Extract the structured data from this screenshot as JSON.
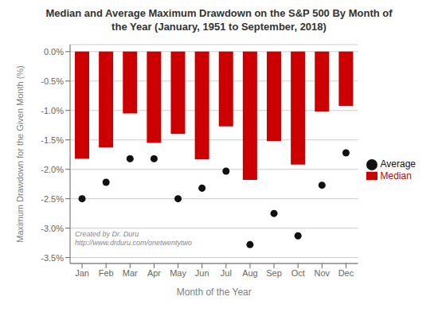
{
  "chart_data": {
    "type": "bar",
    "title": "Median and Average Maximum Drawdown on the S&P 500 By Month of\nthe Year (January, 1951 to September, 2018)",
    "x_label": "Month of the Year",
    "y_label": "Maximum Drawdown for the Given Month (%)",
    "categories": [
      "Jan",
      "Feb",
      "Mar",
      "Apr",
      "May",
      "Jun",
      "Jul",
      "Aug",
      "Sep",
      "Oct",
      "Nov",
      "Dec"
    ],
    "series": [
      {
        "name": "Median",
        "type": "bar",
        "color": "#cc0000",
        "values": [
          -1.82,
          -1.63,
          -1.05,
          -1.55,
          -1.4,
          -1.83,
          -1.27,
          -2.18,
          -1.52,
          -1.92,
          -1.02,
          -0.92
        ]
      },
      {
        "name": "Average",
        "type": "scatter",
        "color": "#111111",
        "marker": "circle",
        "values": [
          -2.5,
          -2.22,
          -1.82,
          -1.82,
          -2.5,
          -2.32,
          -2.03,
          -3.28,
          -2.75,
          -3.13,
          -2.27,
          -1.72
        ]
      }
    ],
    "ylim": [
      -3.6,
      0.12
    ],
    "yticks": [
      {
        "value": 0.0,
        "label": "0.0%"
      },
      {
        "value": -0.5,
        "label": "-0.5%"
      },
      {
        "value": -1.0,
        "label": "-1.0%"
      },
      {
        "value": -1.5,
        "label": "-1.5%"
      },
      {
        "value": -2.0,
        "label": "-2.0%"
      },
      {
        "value": -2.5,
        "label": "-2.5%"
      },
      {
        "value": -3.0,
        "label": "-3.0%"
      },
      {
        "value": -3.5,
        "label": "-3.5%"
      }
    ],
    "annotation": "Created by Dr. Duru\nhttp://www.drduru.com/onetwentytwo",
    "grid": "y",
    "legend": "right"
  }
}
